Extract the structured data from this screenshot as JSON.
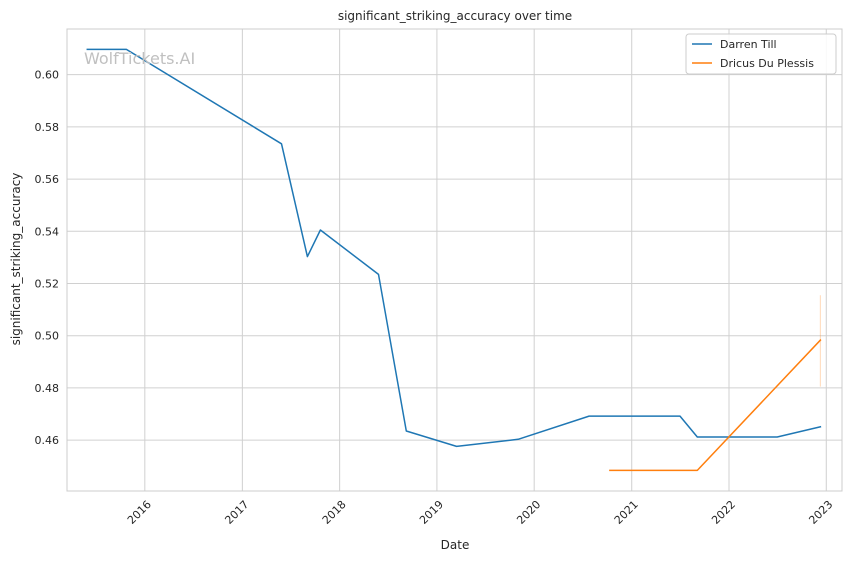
{
  "watermark": "WolfTickets.AI",
  "chart_data": {
    "type": "line",
    "title": "significant_striking_accuracy over time",
    "xlabel": "Date",
    "ylabel": "significant_striking_accuracy",
    "x_type": "date",
    "xlim": [
      "2015-03-15",
      "2023-03-01"
    ],
    "ylim": [
      0.4405,
      0.6175
    ],
    "x_ticks": [
      {
        "label": "2016",
        "date": "2016-01-01"
      },
      {
        "label": "2017",
        "date": "2017-01-01"
      },
      {
        "label": "2018",
        "date": "2018-01-01"
      },
      {
        "label": "2019",
        "date": "2019-01-01"
      },
      {
        "label": "2020",
        "date": "2020-01-01"
      },
      {
        "label": "2021",
        "date": "2021-01-01"
      },
      {
        "label": "2022",
        "date": "2022-01-01"
      },
      {
        "label": "2023",
        "date": "2023-01-01"
      }
    ],
    "y_ticks": [
      "0.46",
      "0.48",
      "0.50",
      "0.52",
      "0.54",
      "0.56",
      "0.58",
      "0.60"
    ],
    "grid": true,
    "legend_position": "top-right",
    "series": [
      {
        "name": "Darren Till",
        "color": "#1f77b4",
        "points": [
          {
            "x": "2015-05-30",
            "y": 0.6097
          },
          {
            "x": "2015-10-24",
            "y": 0.6097
          },
          {
            "x": "2017-05-28",
            "y": 0.5735
          },
          {
            "x": "2017-09-02",
            "y": 0.5303
          },
          {
            "x": "2017-10-21",
            "y": 0.5405
          },
          {
            "x": "2018-05-27",
            "y": 0.5235
          },
          {
            "x": "2018-09-08",
            "y": 0.4635
          },
          {
            "x": "2019-03-16",
            "y": 0.4576
          },
          {
            "x": "2019-11-02",
            "y": 0.4603
          },
          {
            "x": "2020-07-25",
            "y": 0.4692
          },
          {
            "x": "2021-07-01",
            "y": 0.4692
          },
          {
            "x": "2021-09-04",
            "y": 0.4612
          },
          {
            "x": "2022-07-01",
            "y": 0.4612
          },
          {
            "x": "2022-12-10",
            "y": 0.4651
          }
        ]
      },
      {
        "name": "Dricus Du Plessis",
        "color": "#ff7f0e",
        "points": [
          {
            "x": "2020-10-11",
            "y": 0.4484
          },
          {
            "x": "2021-09-04",
            "y": 0.4484
          },
          {
            "x": "2022-12-10",
            "y": 0.4983
          }
        ],
        "error_band": {
          "x": "2022-12-10",
          "low": 0.4805,
          "high": 0.5155
        }
      }
    ]
  }
}
